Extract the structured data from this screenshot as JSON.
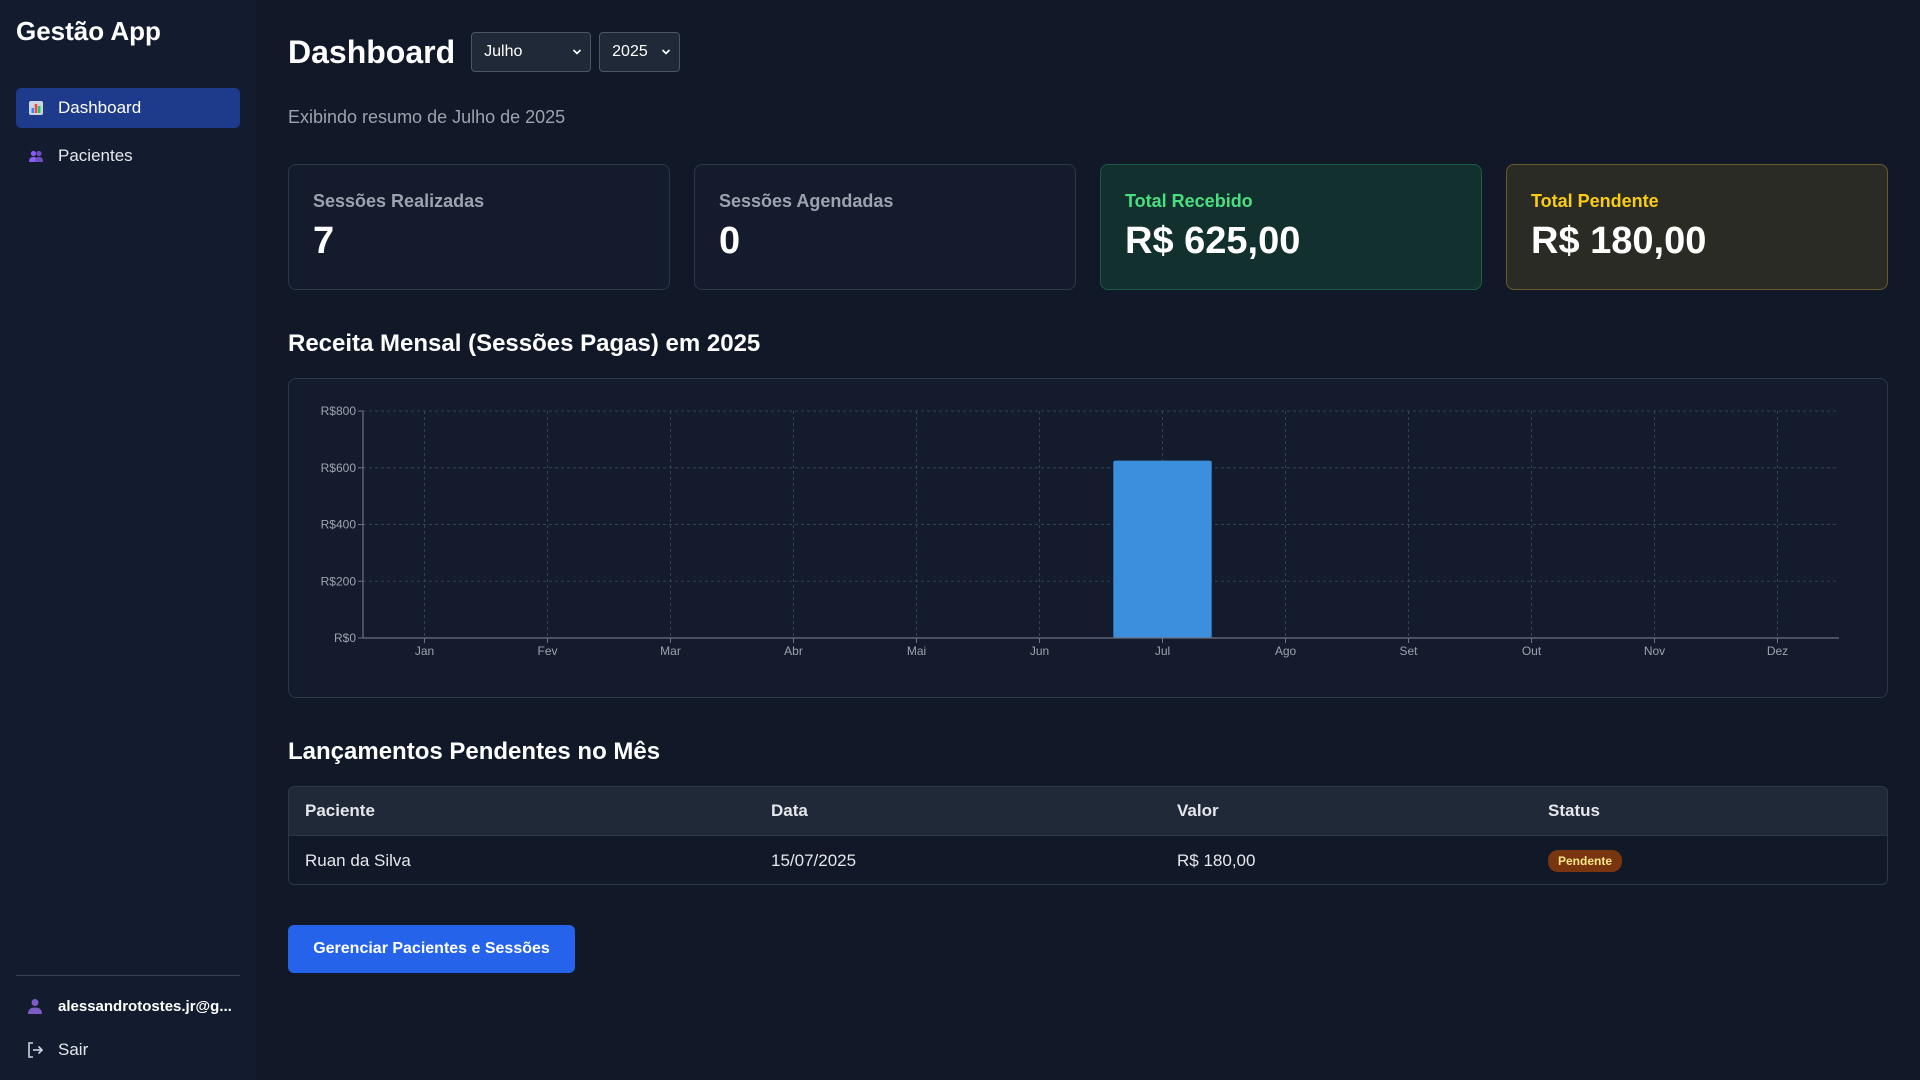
{
  "app": {
    "title": "Gestão App"
  },
  "sidebar": {
    "items": [
      {
        "label": "Dashboard",
        "icon": "chart-icon",
        "active": true
      },
      {
        "label": "Pacientes",
        "icon": "users-icon",
        "active": false
      }
    ],
    "user_email": "alessandrotostes.jr@g...",
    "logout_label": "Sair"
  },
  "header": {
    "title": "Dashboard",
    "month_select": "Julho",
    "year_select": "2025",
    "subtitle": "Exibindo resumo de Julho de 2025"
  },
  "cards": [
    {
      "label": "Sessões Realizadas",
      "value": "7"
    },
    {
      "label": "Sessões Agendadas",
      "value": "0"
    },
    {
      "label": "Total Recebido",
      "value": "R$ 625,00"
    },
    {
      "label": "Total Pendente",
      "value": "R$ 180,00"
    }
  ],
  "chart_section": {
    "title": "Receita Mensal (Sessões Pagas) em 2025"
  },
  "chart_data": {
    "type": "bar",
    "categories": [
      "Jan",
      "Fev",
      "Mar",
      "Abr",
      "Mai",
      "Jun",
      "Jul",
      "Ago",
      "Set",
      "Out",
      "Nov",
      "Dez"
    ],
    "values": [
      0,
      0,
      0,
      0,
      0,
      0,
      625,
      0,
      0,
      0,
      0,
      0
    ],
    "yticks": [
      "R$0",
      "R$200",
      "R$400",
      "R$600",
      "R$800"
    ],
    "ylim": [
      0,
      800
    ],
    "grid": true,
    "bar_color": "#3b8fdc"
  },
  "table_section": {
    "title": "Lançamentos Pendentes no Mês",
    "headers": [
      "Paciente",
      "Data",
      "Valor",
      "Status"
    ],
    "rows": [
      {
        "paciente": "Ruan da Silva",
        "data": "15/07/2025",
        "valor": "R$ 180,00",
        "status": "Pendente"
      }
    ]
  },
  "actions": {
    "manage_label": "Gerenciar Pacientes e Sessões"
  },
  "colors": {
    "background": "#111827",
    "accent": "#2563eb",
    "received": "#4ade80",
    "pending": "#facc15"
  }
}
